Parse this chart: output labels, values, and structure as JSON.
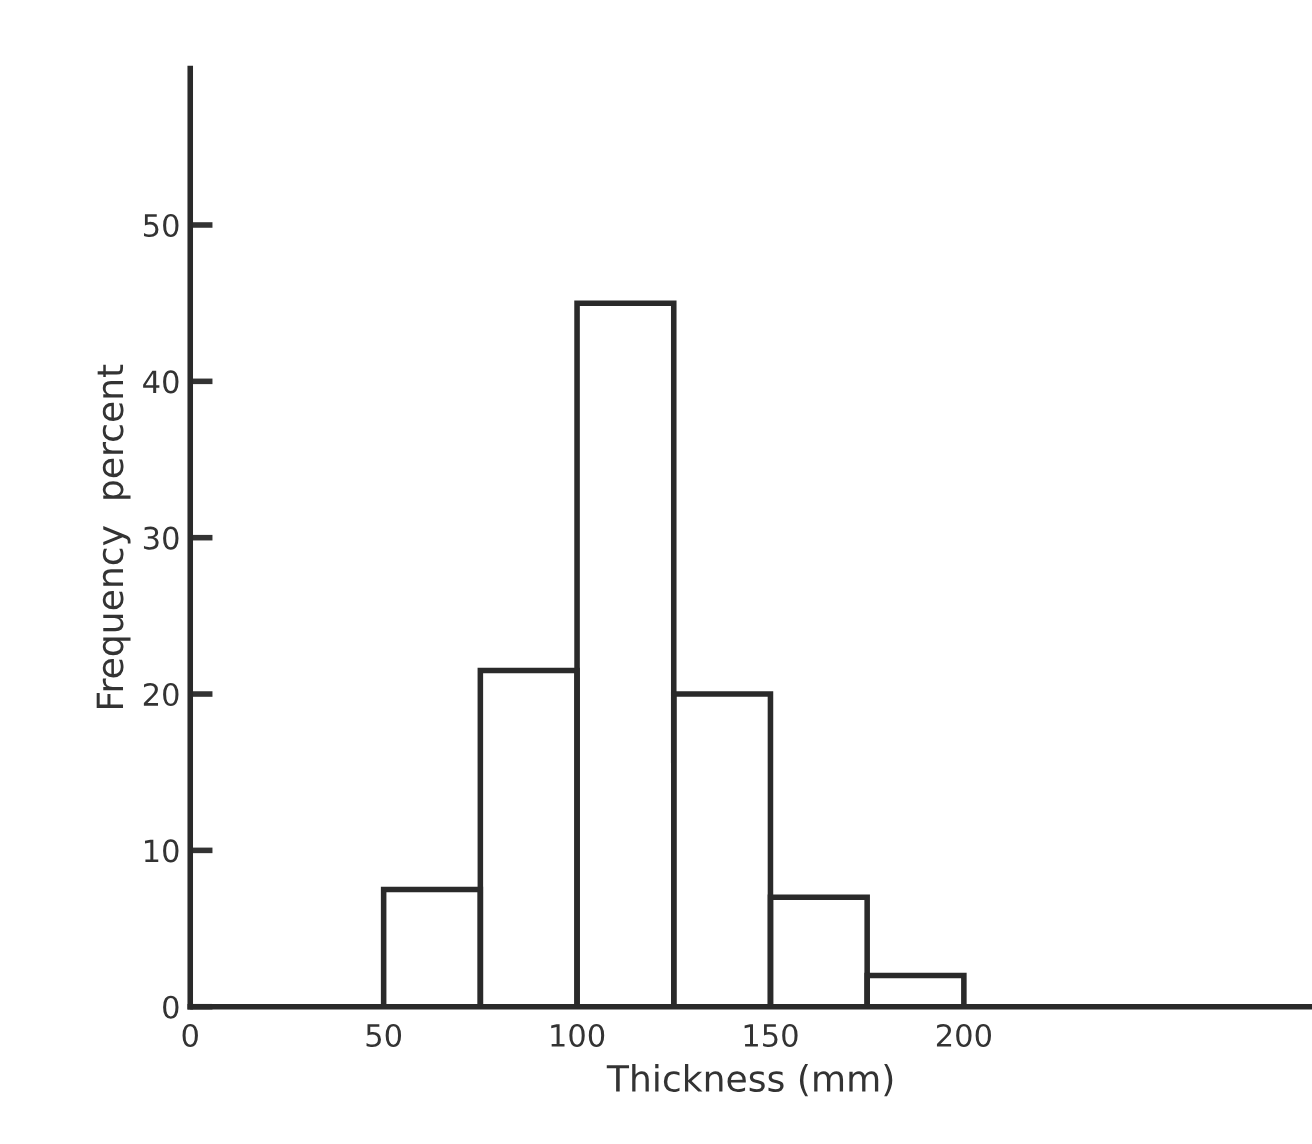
{
  "chart_data": {
    "type": "histogram",
    "xlabel": "Thickness (mm)",
    "ylabel": "Frequency  percent",
    "bins": [
      50,
      75,
      100,
      125,
      150,
      175,
      200
    ],
    "values": [
      7.5,
      21.5,
      45,
      20,
      7,
      2
    ],
    "color": "#2a2a2a",
    "xlim": [
      0,
      290
    ],
    "ylim": [
      0,
      60
    ],
    "xticks": [
      0,
      50,
      100,
      150,
      200
    ],
    "yticks": [
      0,
      10,
      20,
      30,
      40,
      50
    ],
    "grid": false
  }
}
